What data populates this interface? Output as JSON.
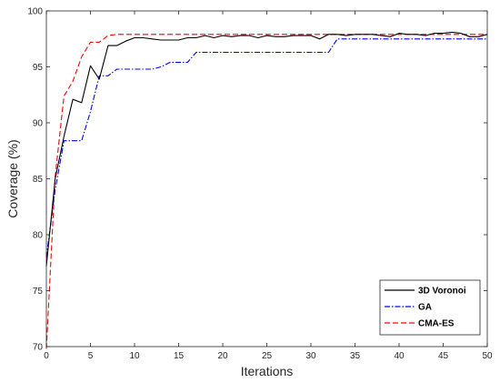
{
  "chart_data": {
    "type": "line",
    "title": "",
    "xlabel": "Iterations",
    "ylabel": "Coverage (%)",
    "xlim": [
      0,
      50
    ],
    "ylim": [
      70,
      100
    ],
    "xticks": [
      0,
      5,
      10,
      15,
      20,
      25,
      30,
      35,
      40,
      45,
      50
    ],
    "yticks": [
      70,
      75,
      80,
      85,
      90,
      95,
      100
    ],
    "grid": false,
    "legend": {
      "position": "bottom-right"
    },
    "series": [
      {
        "name": "3D Voronoi",
        "color": "#000000",
        "style": "solid",
        "x": [
          0,
          1,
          2,
          3,
          4,
          5,
          6,
          7,
          8,
          9,
          10,
          11,
          12,
          13,
          14,
          15,
          16,
          17,
          18,
          19,
          20,
          21,
          22,
          23,
          24,
          25,
          26,
          27,
          28,
          29,
          30,
          31,
          32,
          33,
          34,
          35,
          36,
          37,
          38,
          39,
          40,
          41,
          42,
          43,
          44,
          45,
          46,
          47,
          48,
          49,
          50
        ],
        "y": [
          77.2,
          85.0,
          88.8,
          92.1,
          91.8,
          95.1,
          93.9,
          96.9,
          96.9,
          97.3,
          97.6,
          97.6,
          97.5,
          97.4,
          97.4,
          97.4,
          97.6,
          97.6,
          97.8,
          97.6,
          97.8,
          97.7,
          97.8,
          97.8,
          97.6,
          97.8,
          97.7,
          97.7,
          97.8,
          97.8,
          97.8,
          97.5,
          97.9,
          97.9,
          97.8,
          97.9,
          97.9,
          97.9,
          97.8,
          97.7,
          98.0,
          97.9,
          97.9,
          97.8,
          98.0,
          98.0,
          98.1,
          98.0,
          97.7,
          97.7,
          97.9
        ]
      },
      {
        "name": "GA",
        "color": "#0000ff",
        "style": "dashdot",
        "x": [
          0,
          1,
          2,
          3,
          4,
          5,
          6,
          7,
          8,
          9,
          10,
          11,
          12,
          13,
          14,
          15,
          16,
          17,
          18,
          19,
          20,
          21,
          22,
          23,
          24,
          25,
          26,
          27,
          28,
          29,
          30,
          31,
          32,
          33,
          34,
          35,
          36,
          37,
          38,
          39,
          40,
          41,
          42,
          43,
          44,
          45,
          46,
          47,
          48,
          49,
          50
        ],
        "y": [
          78.0,
          84.0,
          88.4,
          88.4,
          88.4,
          91.0,
          94.2,
          94.2,
          94.8,
          94.8,
          94.8,
          94.8,
          94.8,
          95.0,
          95.4,
          95.4,
          95.4,
          96.3,
          96.3,
          96.3,
          96.3,
          96.3,
          96.3,
          96.3,
          96.3,
          96.3,
          96.3,
          96.3,
          96.3,
          96.3,
          96.3,
          96.3,
          96.3,
          97.5,
          97.5,
          97.5,
          97.5,
          97.5,
          97.5,
          97.5,
          97.5,
          97.5,
          97.5,
          97.5,
          97.5,
          97.5,
          97.5,
          97.5,
          97.5,
          97.5,
          97.5
        ]
      },
      {
        "name": "CMA-ES",
        "color": "#ff0000",
        "style": "dashed",
        "x": [
          0,
          1,
          2,
          3,
          4,
          5,
          6,
          7,
          8,
          9,
          10,
          11,
          12,
          13,
          14,
          15,
          16,
          17,
          18,
          19,
          20,
          21,
          22,
          23,
          24,
          25,
          26,
          27,
          28,
          29,
          30,
          31,
          32,
          33,
          34,
          35,
          36,
          37,
          38,
          39,
          40,
          41,
          42,
          43,
          44,
          45,
          46,
          47,
          48,
          49,
          50
        ],
        "y": [
          69.8,
          85.2,
          92.4,
          93.7,
          95.9,
          97.2,
          97.2,
          97.8,
          97.9,
          97.9,
          97.9,
          97.9,
          97.9,
          97.9,
          97.9,
          97.9,
          97.9,
          97.9,
          97.9,
          97.9,
          97.9,
          97.9,
          97.9,
          97.9,
          97.9,
          97.9,
          97.9,
          97.9,
          97.9,
          97.9,
          97.9,
          97.9,
          97.9,
          97.9,
          97.9,
          97.9,
          97.9,
          97.9,
          97.9,
          97.9,
          97.9,
          97.9,
          97.9,
          97.9,
          97.9,
          97.9,
          97.9,
          97.9,
          97.9,
          97.9,
          97.9
        ]
      }
    ]
  }
}
